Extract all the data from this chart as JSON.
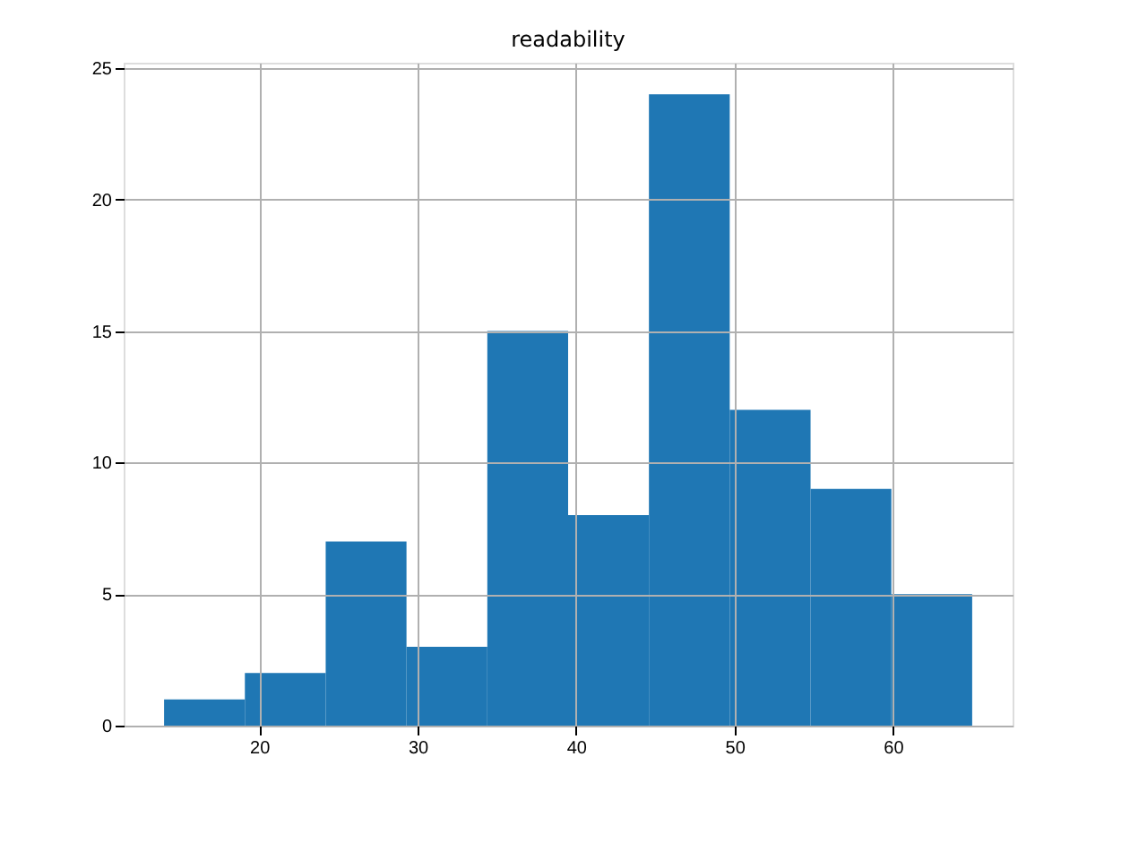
{
  "chart_data": {
    "type": "histogram",
    "title": "readability",
    "bins": [
      14,
      19.1,
      24.2,
      29.3,
      34.4,
      39.5,
      44.6,
      49.7,
      54.8,
      59.9,
      65
    ],
    "values": [
      1,
      2,
      7,
      3,
      15,
      8,
      24,
      12,
      9,
      5
    ],
    "color": "#1f77b4",
    "xlim": [
      11.45,
      67.55
    ],
    "xticks": [
      20,
      30,
      40,
      50,
      60
    ],
    "ylim": [
      0,
      25.2
    ],
    "yticks": [
      0,
      5,
      10,
      15,
      20,
      25
    ],
    "grid": true
  }
}
